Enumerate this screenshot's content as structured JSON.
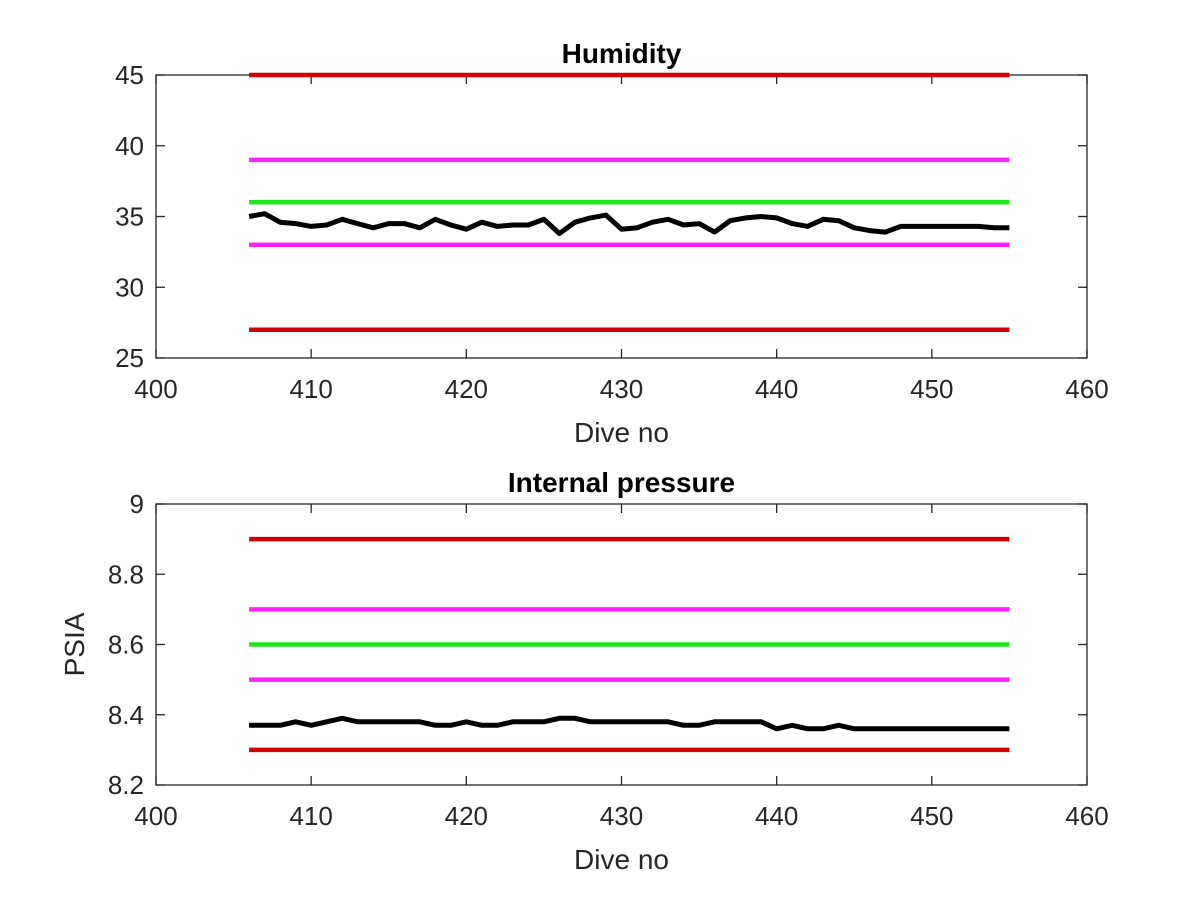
{
  "chart_data": [
    {
      "type": "line",
      "title": "Humidity",
      "xlabel": "Dive no",
      "ylabel": "",
      "xlim": [
        400,
        460
      ],
      "ylim": [
        25,
        45
      ],
      "xticks": [
        "400",
        "410",
        "420",
        "430",
        "440",
        "450",
        "460"
      ],
      "yticks": [
        "25",
        "30",
        "35",
        "40",
        "45"
      ],
      "series": [
        {
          "color": "#d40000",
          "x": [
            406,
            455
          ],
          "y": [
            45,
            45
          ]
        },
        {
          "color": "#ff20ff",
          "x": [
            406,
            455
          ],
          "y": [
            39,
            39
          ]
        },
        {
          "color": "#1fe61f",
          "x": [
            406,
            455
          ],
          "y": [
            36,
            36
          ]
        },
        {
          "color": "#ff20ff",
          "x": [
            406,
            455
          ],
          "y": [
            33,
            33
          ]
        },
        {
          "color": "#d40000",
          "x": [
            406,
            455
          ],
          "y": [
            27,
            27
          ]
        },
        {
          "color": "#000000",
          "x": [
            406,
            407,
            408,
            409,
            410,
            411,
            412,
            413,
            414,
            415,
            416,
            417,
            418,
            419,
            420,
            421,
            422,
            423,
            424,
            425,
            426,
            427,
            428,
            429,
            430,
            431,
            432,
            433,
            434,
            435,
            436,
            437,
            438,
            439,
            440,
            441,
            442,
            443,
            444,
            445,
            446,
            447,
            448,
            449,
            450,
            451,
            452,
            453,
            454,
            455
          ],
          "y": [
            35.0,
            35.2,
            34.6,
            34.5,
            34.3,
            34.4,
            34.8,
            34.5,
            34.2,
            34.5,
            34.5,
            34.2,
            34.8,
            34.4,
            34.1,
            34.6,
            34.3,
            34.4,
            34.4,
            34.8,
            33.8,
            34.6,
            34.9,
            35.1,
            34.1,
            34.2,
            34.6,
            34.8,
            34.4,
            34.5,
            33.9,
            34.7,
            34.9,
            35.0,
            34.9,
            34.5,
            34.3,
            34.8,
            34.7,
            34.2,
            34.0,
            33.9,
            34.3,
            34.3,
            34.3,
            34.3,
            34.3,
            34.3,
            34.2,
            34.2
          ]
        }
      ]
    },
    {
      "type": "line",
      "title": "Internal pressure",
      "xlabel": "Dive no",
      "ylabel": "PSIA",
      "xlim": [
        400,
        460
      ],
      "ylim": [
        8.2,
        9.0
      ],
      "xticks": [
        "400",
        "410",
        "420",
        "430",
        "440",
        "450",
        "460"
      ],
      "yticks": [
        "8.2",
        "8.4",
        "8.6",
        "8.8",
        "9"
      ],
      "series": [
        {
          "color": "#d40000",
          "x": [
            406,
            455
          ],
          "y": [
            8.9,
            8.9
          ]
        },
        {
          "color": "#ff20ff",
          "x": [
            406,
            455
          ],
          "y": [
            8.7,
            8.7
          ]
        },
        {
          "color": "#1fe61f",
          "x": [
            406,
            455
          ],
          "y": [
            8.6,
            8.6
          ]
        },
        {
          "color": "#ff20ff",
          "x": [
            406,
            455
          ],
          "y": [
            8.5,
            8.5
          ]
        },
        {
          "color": "#d40000",
          "x": [
            406,
            455
          ],
          "y": [
            8.3,
            8.3
          ]
        },
        {
          "color": "#000000",
          "x": [
            406,
            407,
            408,
            409,
            410,
            411,
            412,
            413,
            414,
            415,
            416,
            417,
            418,
            419,
            420,
            421,
            422,
            423,
            424,
            425,
            426,
            427,
            428,
            429,
            430,
            431,
            432,
            433,
            434,
            435,
            436,
            437,
            438,
            439,
            440,
            441,
            442,
            443,
            444,
            445,
            446,
            447,
            448,
            449,
            450,
            451,
            452,
            453,
            454,
            455
          ],
          "y": [
            8.37,
            8.37,
            8.37,
            8.38,
            8.37,
            8.38,
            8.39,
            8.38,
            8.38,
            8.38,
            8.38,
            8.38,
            8.37,
            8.37,
            8.38,
            8.37,
            8.37,
            8.38,
            8.38,
            8.38,
            8.39,
            8.39,
            8.38,
            8.38,
            8.38,
            8.38,
            8.38,
            8.38,
            8.37,
            8.37,
            8.38,
            8.38,
            8.38,
            8.38,
            8.36,
            8.37,
            8.36,
            8.36,
            8.37,
            8.36,
            8.36,
            8.36,
            8.36,
            8.36,
            8.36,
            8.36,
            8.36,
            8.36,
            8.36,
            8.36
          ]
        }
      ]
    }
  ]
}
